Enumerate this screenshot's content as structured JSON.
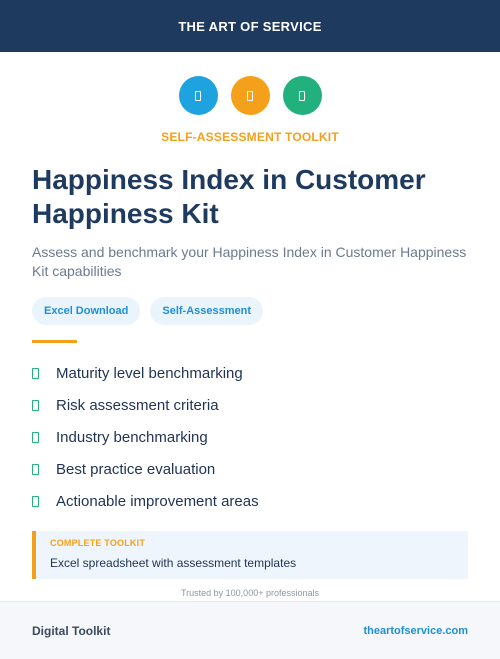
{
  "header": {
    "brand": "THE ART OF SERVICE"
  },
  "icons": [
    {
      "name": "document-icon",
      "color": "#1ea2e0"
    },
    {
      "name": "clipboard-icon",
      "color": "#f5a01a"
    },
    {
      "name": "checklist-icon",
      "color": "#22b07d"
    }
  ],
  "kicker": "SELF-ASSESSMENT TOOLKIT",
  "title": "Happiness Index in Customer Happiness Kit",
  "subtitle": "Assess and benchmark your Happiness Index in Customer Happiness Kit capabilities",
  "tags": [
    "Excel Download",
    "Self-Assessment"
  ],
  "features": [
    "Maturity level benchmarking",
    "Risk assessment criteria",
    "Industry benchmarking",
    "Best practice evaluation",
    "Actionable improvement areas"
  ],
  "toolkit": {
    "label": "COMPLETE TOOLKIT",
    "description": "Excel spreadsheet with assessment templates"
  },
  "trusted": "Trusted by 100,000+ professionals",
  "footer": {
    "left": "Digital Toolkit",
    "right": "theartofservice.com"
  },
  "colors": {
    "navy": "#1e3a5f",
    "accent_orange": "#f5a01a",
    "accent_blue": "#1f8fd6",
    "accent_green": "#22b07d"
  }
}
